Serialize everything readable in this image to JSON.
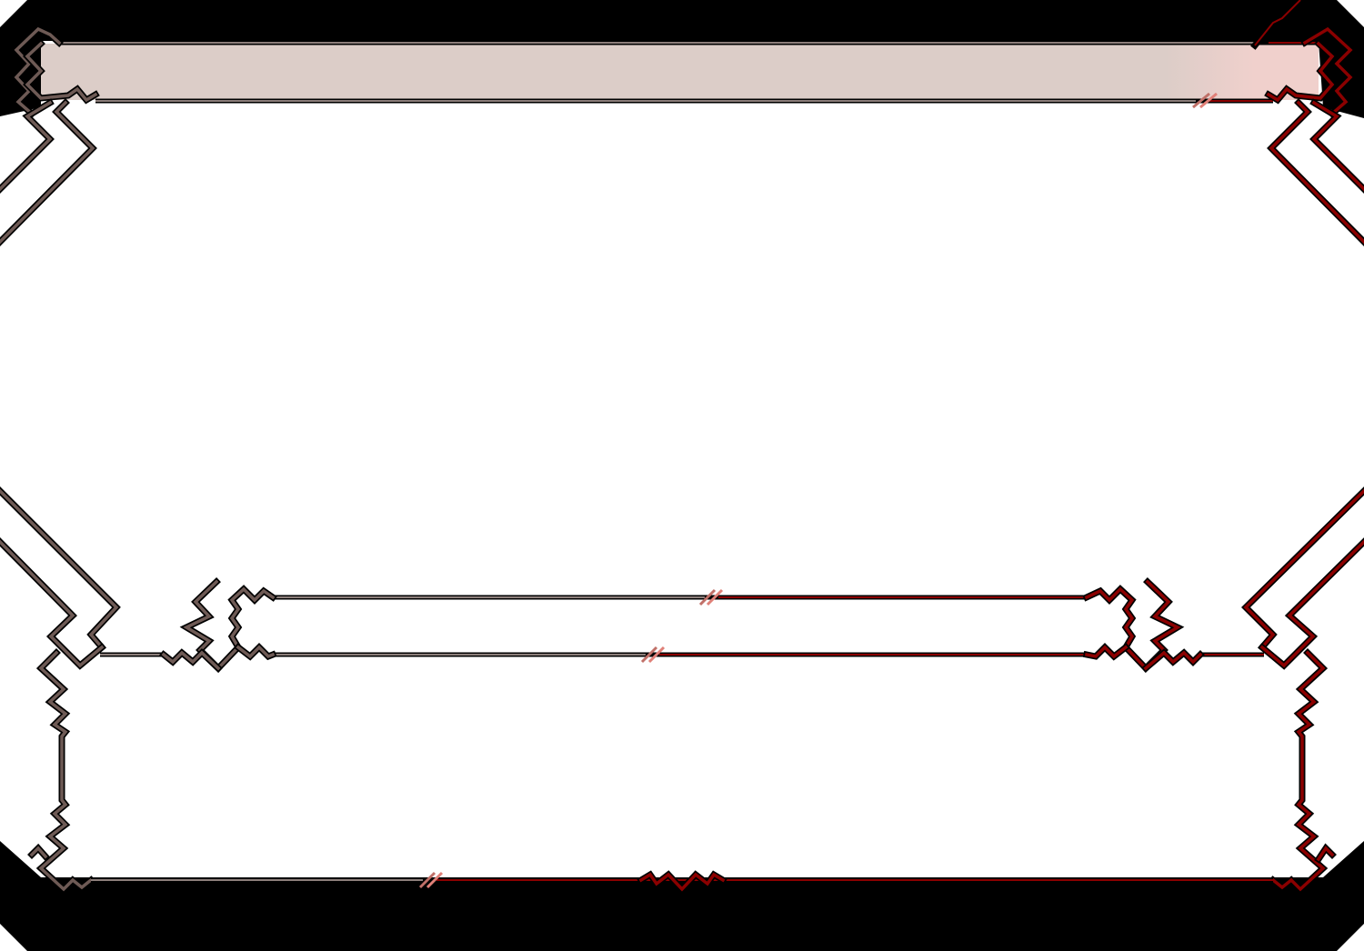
{
  "frame": {
    "colors": {
      "left_trim": "#6e5a55",
      "right_trim": "#8b0000",
      "outline": "#000000",
      "title_bar_fill": "#dccdc8",
      "title_bar_fill_accent": "#f0d0cc",
      "background": "#ffffff",
      "mask": "#000000"
    },
    "panels": [
      "title-bar",
      "middle-bar",
      "lower-box"
    ]
  }
}
